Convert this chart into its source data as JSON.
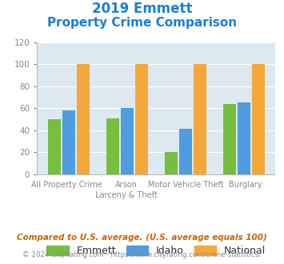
{
  "title_line1": "2019 Emmett",
  "title_line2": "Property Crime Comparison",
  "category_labels_top": [
    "All Property Crime",
    "Arson",
    "Motor Vehicle Theft",
    "Burglary"
  ],
  "category_labels_bot": [
    "",
    "Larceny & Theft",
    "",
    ""
  ],
  "emmett": [
    50,
    51,
    20,
    64
  ],
  "idaho": [
    58,
    60,
    41,
    65
  ],
  "national": [
    100,
    100,
    100,
    100
  ],
  "emmett_color": "#76bf3e",
  "idaho_color": "#4d9de0",
  "national_color": "#f5a83a",
  "ylim": [
    0,
    120
  ],
  "yticks": [
    0,
    20,
    40,
    60,
    80,
    100,
    120
  ],
  "bar_bg_color": "#dde9f0",
  "grid_color": "#ffffff",
  "title_color": "#1a7fd4",
  "tick_color": "#888888",
  "footer_note": "Compared to U.S. average. (U.S. average equals 100)",
  "footer_copy": "© 2024 CityRating.com - https://www.cityrating.com/crime-statistics/",
  "legend_labels": [
    "Emmett",
    "Idaho",
    "National"
  ]
}
